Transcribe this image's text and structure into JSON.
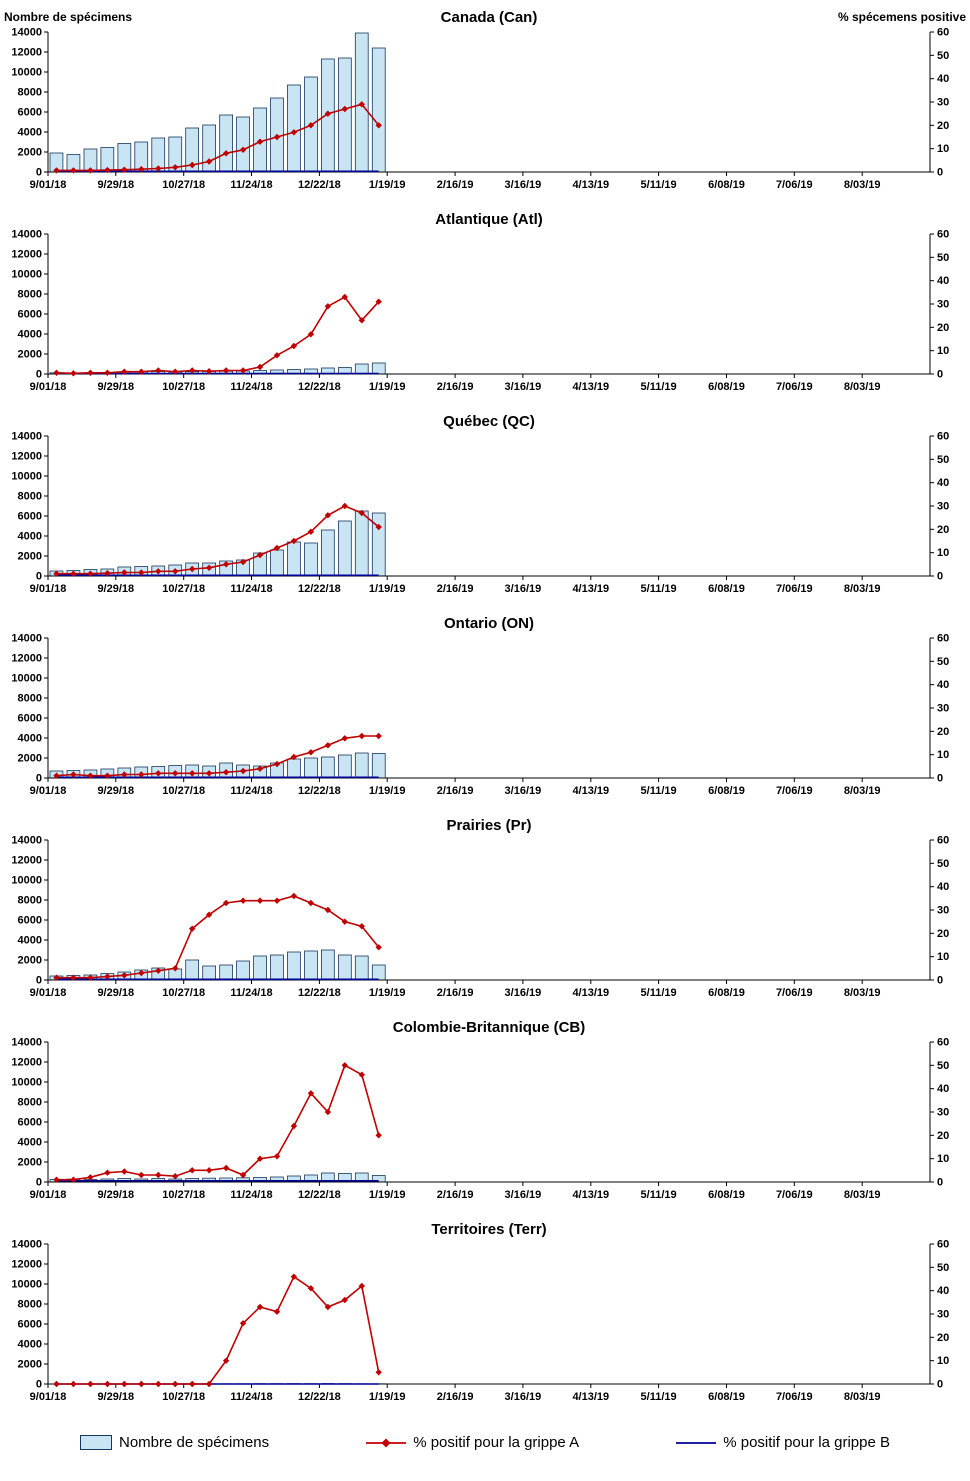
{
  "chart_config": {
    "y_left": {
      "label": "Nombre de spécimens",
      "max": 14000,
      "ticks": [
        0,
        2000,
        4000,
        6000,
        8000,
        10000,
        12000,
        14000
      ]
    },
    "y_right": {
      "label": "% spécemens positive",
      "max": 60,
      "ticks": [
        0,
        10,
        20,
        30,
        40,
        50,
        60
      ]
    },
    "x_ticks": [
      "9/01/18",
      "9/29/18",
      "10/27/18",
      "11/24/18",
      "12/22/18",
      "1/19/19",
      "2/16/19",
      "3/16/19",
      "4/13/19",
      "5/11/19",
      "6/08/19",
      "7/06/19",
      "8/03/19"
    ],
    "total_weeks": 52,
    "grid": false,
    "legend_position": "bottom",
    "colors": {
      "bar_fill": "#C9E4F3",
      "bar_stroke": "#17375E",
      "flu_a": "#C00000",
      "flu_b": "#000099"
    }
  },
  "week_dates": [
    "9/01/18",
    "9/08/18",
    "9/15/18",
    "9/22/18",
    "9/29/18",
    "10/06/18",
    "10/13/18",
    "10/20/18",
    "10/27/18",
    "11/03/18",
    "11/10/18",
    "11/17/18",
    "11/24/18",
    "12/01/18",
    "12/08/18",
    "12/15/18",
    "12/22/18",
    "12/29/18",
    "1/05/19",
    "1/12/19"
  ],
  "chart_data": [
    {
      "type": "bar+line",
      "title": "Canada (Can)",
      "specimens": [
        1900,
        1750,
        2300,
        2450,
        2850,
        3000,
        3400,
        3500,
        4400,
        4700,
        5700,
        5500,
        6400,
        7400,
        8700,
        9500,
        11300,
        11400,
        13900,
        12400
      ],
      "pct_flu_a": [
        0.7,
        0.7,
        0.7,
        0.8,
        1,
        1.2,
        1.5,
        2,
        3,
        4.5,
        8,
        9.5,
        13,
        15,
        17,
        20,
        25,
        27,
        29,
        20
      ],
      "pct_flu_b": [
        0.3,
        0.3,
        0.3,
        0.3,
        0.3,
        0.3,
        0.3,
        0.3,
        0.3,
        0.3,
        0.3,
        0.3,
        0.3,
        0.3,
        0.3,
        0.3,
        0.3,
        0.3,
        0.3,
        0.3
      ]
    },
    {
      "type": "bar+line",
      "title": "Atlantique (Atl)",
      "specimens": [
        120,
        100,
        120,
        150,
        200,
        220,
        250,
        200,
        230,
        250,
        280,
        300,
        350,
        400,
        450,
        500,
        600,
        650,
        1000,
        1100
      ],
      "pct_flu_a": [
        0.5,
        0.3,
        0.5,
        0.5,
        1,
        1,
        1.5,
        1,
        1.5,
        1.2,
        1.5,
        1.5,
        3,
        8,
        12,
        17,
        29,
        33,
        23,
        31
      ],
      "pct_flu_b": [
        0.2,
        0.2,
        0.2,
        0.2,
        0.2,
        0.2,
        0.2,
        0.2,
        0.2,
        0.2,
        0.2,
        0.2,
        0.2,
        0.2,
        0.2,
        0.2,
        0.2,
        0.2,
        0.2,
        0.2
      ]
    },
    {
      "type": "bar+line",
      "title": "Québec (QC)",
      "specimens": [
        500,
        550,
        650,
        700,
        900,
        950,
        1000,
        1100,
        1300,
        1300,
        1500,
        1600,
        2300,
        2600,
        3400,
        3300,
        4600,
        5500,
        6500,
        6300
      ],
      "pct_flu_a": [
        1,
        1,
        1,
        1.2,
        1.5,
        1.5,
        2,
        2,
        3,
        3.5,
        5,
        6,
        9,
        12,
        15,
        19,
        26,
        30,
        27,
        21
      ],
      "pct_flu_b": [
        0.3,
        0.3,
        0.3,
        0.3,
        0.3,
        0.3,
        0.3,
        0.3,
        0.3,
        0.3,
        0.3,
        0.3,
        0.3,
        0.3,
        0.3,
        0.3,
        0.3,
        0.3,
        0.3,
        0.3
      ]
    },
    {
      "type": "bar+line",
      "title": "Ontario (ON)",
      "specimens": [
        700,
        750,
        800,
        900,
        1000,
        1100,
        1150,
        1250,
        1300,
        1200,
        1500,
        1300,
        1200,
        1500,
        1900,
        2000,
        2100,
        2300,
        2500,
        2450
      ],
      "pct_flu_a": [
        1,
        1.5,
        1,
        1,
        1.5,
        1.5,
        2,
        2,
        2,
        2,
        2.5,
        3,
        4,
        6,
        9,
        11,
        14,
        17,
        18,
        18
      ],
      "pct_flu_b": [
        0.3,
        0.3,
        0.3,
        0.3,
        0.3,
        0.3,
        0.3,
        0.3,
        0.3,
        0.3,
        0.3,
        0.3,
        0.3,
        0.3,
        0.3,
        0.3,
        0.3,
        0.3,
        0.3,
        0.3
      ]
    },
    {
      "type": "bar+line",
      "title": "Prairies (Pr)",
      "specimens": [
        400,
        450,
        500,
        650,
        800,
        1000,
        1200,
        1100,
        2000,
        1400,
        1500,
        1900,
        2400,
        2500,
        2800,
        2900,
        3000,
        2500,
        2400,
        1500
      ],
      "pct_flu_a": [
        1,
        1,
        1,
        1.5,
        2,
        3,
        4,
        5,
        22,
        28,
        33,
        34,
        34,
        34,
        36,
        33,
        30,
        25,
        23,
        14
      ],
      "pct_flu_b": [
        0.3,
        0.3,
        0.3,
        0.3,
        0.3,
        0.3,
        0.3,
        0.3,
        0.3,
        0.3,
        0.3,
        0.3,
        0.3,
        0.3,
        0.3,
        0.3,
        0.3,
        0.3,
        0.3,
        0.3
      ]
    },
    {
      "type": "bar+line",
      "title": "Colombie-Britannique (CB)",
      "specimens": [
        250,
        280,
        250,
        300,
        350,
        300,
        350,
        300,
        350,
        380,
        400,
        420,
        450,
        500,
        600,
        700,
        900,
        850,
        900,
        650
      ],
      "pct_flu_a": [
        1,
        1,
        2,
        4,
        4.5,
        3,
        3,
        2.5,
        5,
        5,
        6,
        3,
        10,
        11,
        24,
        38,
        30,
        50,
        46,
        20
      ],
      "pct_flu_b": [
        0.5,
        0.5,
        0.5,
        0.5,
        0.5,
        0.5,
        0.5,
        0.5,
        0.5,
        0.5,
        0.5,
        0.5,
        0.5,
        0.5,
        0.5,
        0.5,
        0.5,
        0.5,
        0.5,
        0.5
      ]
    },
    {
      "type": "bar+line",
      "title": "Territoires (Terr)",
      "specimens": [
        5,
        5,
        5,
        8,
        10,
        8,
        10,
        10,
        15,
        15,
        20,
        20,
        30,
        30,
        40,
        35,
        40,
        35,
        25,
        15
      ],
      "pct_flu_a": [
        0,
        0,
        0,
        0,
        0,
        0,
        0,
        0,
        0,
        0,
        10,
        26,
        33,
        31,
        46,
        41,
        33,
        36,
        42,
        5
      ],
      "pct_flu_b": [
        0,
        0,
        0,
        0,
        0,
        0,
        0,
        0,
        0,
        0,
        0,
        0,
        0,
        0,
        0,
        0,
        0,
        0,
        0,
        0
      ]
    }
  ],
  "legend": {
    "specimens": "Nombre de spécimens",
    "flu_a": "% positif pour la grippe A",
    "flu_b": "% positif pour la grippe B"
  }
}
